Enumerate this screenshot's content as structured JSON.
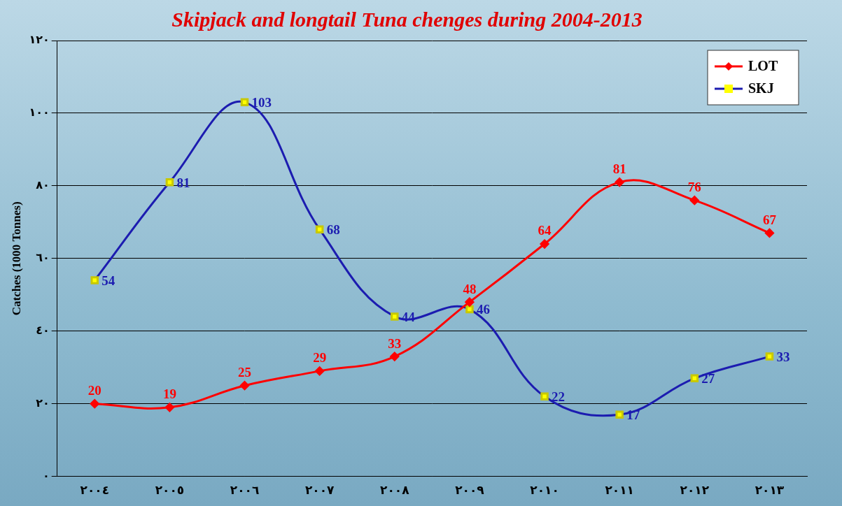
{
  "chart_data": {
    "type": "line",
    "title": "Skipjack and longtail Tuna chenges during 2004-2013",
    "y_label": "Catches (1000 Tonnes)",
    "categories": [
      "٢٠٠٤",
      "٢٠٠٥",
      "٢٠٠٦",
      "٢٠٠٧",
      "٢٠٠٨",
      "٢٠٠٩",
      "٢٠١٠",
      "٢٠١١",
      "٢٠١٢",
      "٢٠١٣"
    ],
    "series": [
      {
        "name": "LOT",
        "color": "#ff0000",
        "marker": "diamond",
        "values": [
          20,
          19,
          25,
          29,
          33,
          48,
          64,
          81,
          76,
          67
        ]
      },
      {
        "name": "SKJ",
        "color": "#1c1cb0",
        "marker": "square",
        "values": [
          54,
          81,
          103,
          68,
          44,
          46,
          22,
          17,
          27,
          33
        ]
      }
    ],
    "ylim": [
      0,
      120
    ],
    "yticks": [
      {
        "value": 0,
        "label": "٠"
      },
      {
        "value": 20,
        "label": "٢٠"
      },
      {
        "value": 40,
        "label": "٤٠"
      },
      {
        "value": 60,
        "label": "٦٠"
      },
      {
        "value": 80,
        "label": "٨٠"
      },
      {
        "value": 100,
        "label": "١٠٠"
      },
      {
        "value": 120,
        "label": "١٢٠"
      }
    ],
    "grid": true,
    "legend": "upper right",
    "data_labels": true
  }
}
